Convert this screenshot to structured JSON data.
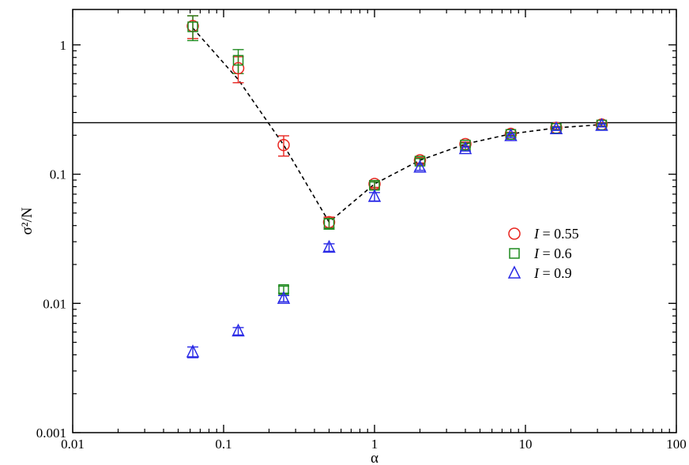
{
  "chart_data": {
    "type": "scatter",
    "title": "",
    "xlabel": "α",
    "ylabel": "σ²/N",
    "xscale": "log",
    "yscale": "log",
    "xlim": [
      0.01,
      100
    ],
    "ylim": [
      0.001,
      2
    ],
    "xticks": [
      "0.01",
      "0.1",
      "1",
      "10",
      "100"
    ],
    "yticks": [
      "0.001",
      "0.01",
      "0.1",
      "1"
    ],
    "reference_line_y": 0.25,
    "grid": false,
    "legend_position": "right",
    "legend": [
      {
        "label": "I = 0.55",
        "marker": "circle",
        "color": "#e8251f"
      },
      {
        "label": "I = 0.6",
        "marker": "square",
        "color": "#1f8a1f"
      },
      {
        "label": "I = 0.9",
        "marker": "triangle",
        "color": "#2a2ae6"
      }
    ],
    "legend_parts": [
      {
        "var": "I",
        "val": " = 0.55"
      },
      {
        "var": "I",
        "val": " = 0.6"
      },
      {
        "var": "I",
        "val": " = 0.9"
      }
    ],
    "series": [
      {
        "name": "I = 0.55",
        "marker": "circle",
        "color": "#e8251f",
        "x": [
          0.0625,
          0.125,
          0.25,
          0.5,
          1,
          2,
          4,
          8,
          16,
          32
        ],
        "y": [
          1.4,
          0.66,
          0.168,
          0.0425,
          0.084,
          0.128,
          0.171,
          0.205,
          0.228,
          0.242
        ],
        "err": [
          0.28,
          0.15,
          0.03,
          0.004,
          0.005,
          0.006,
          0.006,
          0.006,
          0.006,
          0.006
        ]
      },
      {
        "name": "I = 0.6",
        "marker": "square",
        "color": "#1f8a1f",
        "x": [
          0.0625,
          0.125,
          0.25,
          0.5,
          1,
          2,
          4,
          8,
          16,
          32
        ],
        "y": [
          1.38,
          0.76,
          0.0128,
          0.0415,
          0.082,
          0.126,
          0.168,
          0.203,
          0.226,
          0.24
        ],
        "err": [
          0.3,
          0.16,
          0.0008,
          0.004,
          0.005,
          0.006,
          0.006,
          0.006,
          0.006,
          0.006
        ]
      },
      {
        "name": "I = 0.9",
        "marker": "triangle",
        "color": "#2a2ae6",
        "x": [
          0.0625,
          0.125,
          0.25,
          0.5,
          1,
          2,
          4,
          8,
          16,
          32
        ],
        "y": [
          0.0042,
          0.0061,
          0.0109,
          0.0271,
          0.067,
          0.113,
          0.157,
          0.198,
          0.224,
          0.238
        ],
        "err": [
          0.0004,
          0.0004,
          0.0006,
          0.0018,
          0.005,
          0.006,
          0.006,
          0.006,
          0.006,
          0.006
        ]
      }
    ],
    "dashed_curve": {
      "x": [
        0.0625,
        0.125,
        0.25,
        0.5,
        1,
        2,
        4,
        8,
        16,
        32
      ],
      "y": [
        1.35,
        0.54,
        0.168,
        0.0425,
        0.084,
        0.128,
        0.171,
        0.205,
        0.228,
        0.242
      ]
    }
  }
}
